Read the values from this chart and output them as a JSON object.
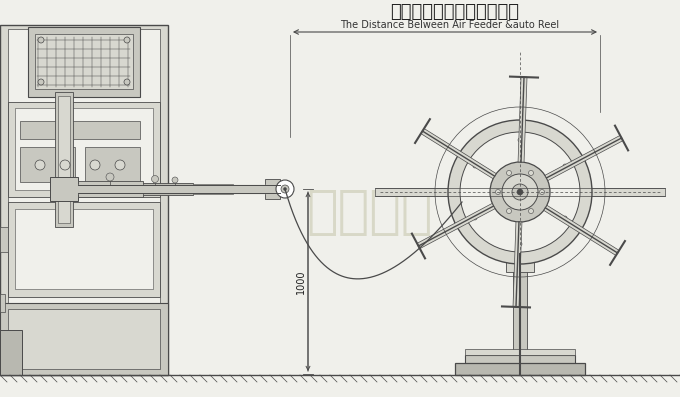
{
  "title_zh": "送料機與材料架之間的距離",
  "title_en": "The Distance Belween Air Feeder &auto Reel",
  "dim_vertical": "1000",
  "bg_color": "#f0f0eb",
  "line_color": "#4a4a4a",
  "med_line": "#666666",
  "light_line": "#888888",
  "fill_light": "#d8d8d0",
  "fill_med": "#c8c8c0",
  "fill_dark": "#b8b8b0",
  "white": "#ffffff",
  "watermark_text": "晉志德机",
  "watermark_color": "#c8c8b0",
  "title_zh_fontsize": 13,
  "title_en_fontsize": 7,
  "dim_font": 7,
  "arrow_color": "#333333",
  "hatch_color": "#555555"
}
